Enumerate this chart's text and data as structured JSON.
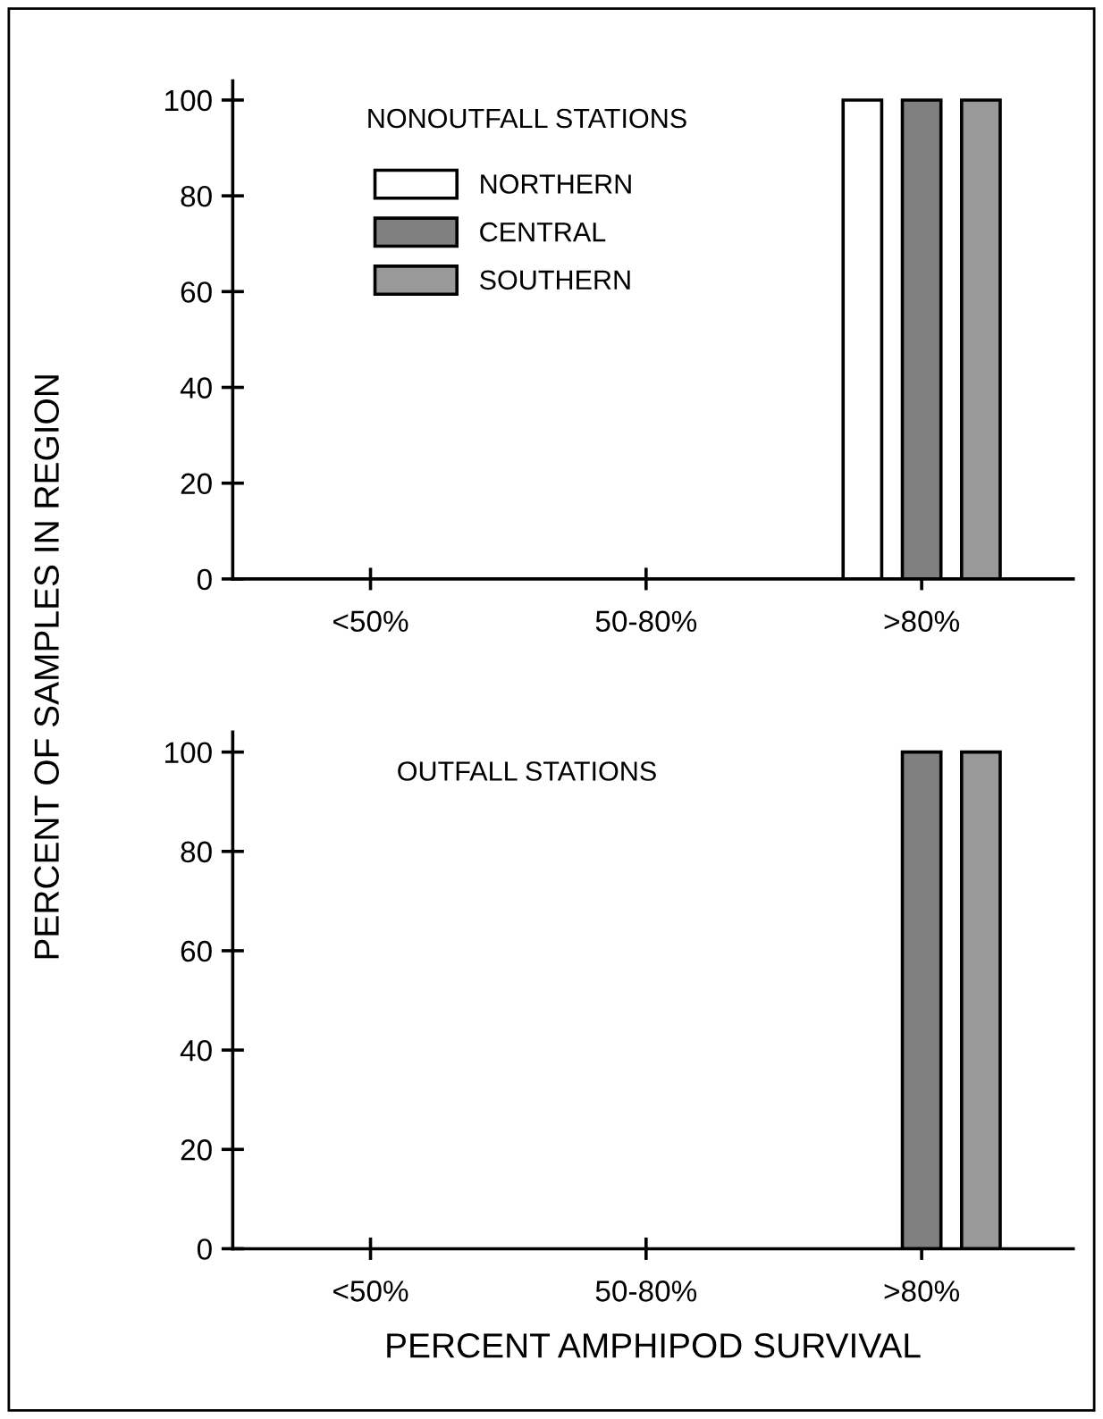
{
  "chart_data": [
    {
      "type": "bar",
      "title": "NONOUTFALL STATIONS",
      "ylabel": "PERCENT OF SAMPLES IN REGION",
      "categories": [
        "<50%",
        "50-80%",
        ">80%"
      ],
      "ylim": [
        0,
        104
      ],
      "yticks": [
        0,
        20,
        40,
        60,
        80,
        100
      ],
      "legend": "top left",
      "series": [
        {
          "name": "NORTHERN",
          "color": "#ffffff",
          "values": [
            0,
            0,
            100
          ]
        },
        {
          "name": "CENTRAL",
          "color": "#808080",
          "values": [
            0,
            0,
            100
          ]
        },
        {
          "name": "SOUTHERN",
          "color": "#999999",
          "values": [
            0,
            0,
            100
          ]
        }
      ]
    },
    {
      "type": "bar",
      "title": "OUTFALL STATIONS",
      "xlabel": "PERCENT AMPHIPOD SURVIVAL",
      "categories": [
        "<50%",
        "50-80%",
        ">80%"
      ],
      "ylim": [
        0,
        104
      ],
      "yticks": [
        0,
        20,
        40,
        60,
        80,
        100
      ],
      "series": [
        {
          "color": "#ffffff",
          "values": [
            0,
            0,
            0
          ]
        },
        {
          "color": "#808080",
          "values": [
            0,
            0,
            100
          ]
        },
        {
          "color": "#999999",
          "values": [
            0,
            0,
            100
          ]
        }
      ]
    }
  ]
}
